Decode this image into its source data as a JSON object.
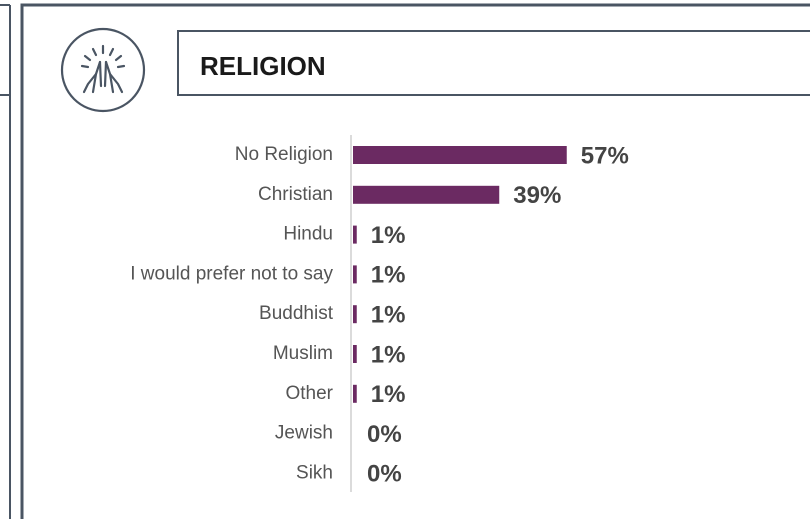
{
  "chart_data": {
    "type": "bar",
    "orientation": "horizontal",
    "title": "RELIGION",
    "categories": [
      "No Religion",
      "Christian",
      "Hindu",
      "I would prefer not to say",
      "Buddhist",
      "Muslim",
      "Other",
      "Jewish",
      "Sikh"
    ],
    "values": [
      57,
      39,
      1,
      1,
      1,
      1,
      1,
      0,
      0
    ],
    "value_labels": [
      "57%",
      "39%",
      "1%",
      "1%",
      "1%",
      "1%",
      "1%",
      "0%",
      "0%"
    ],
    "color": "#6b2a62",
    "xlim": [
      0,
      100
    ]
  }
}
